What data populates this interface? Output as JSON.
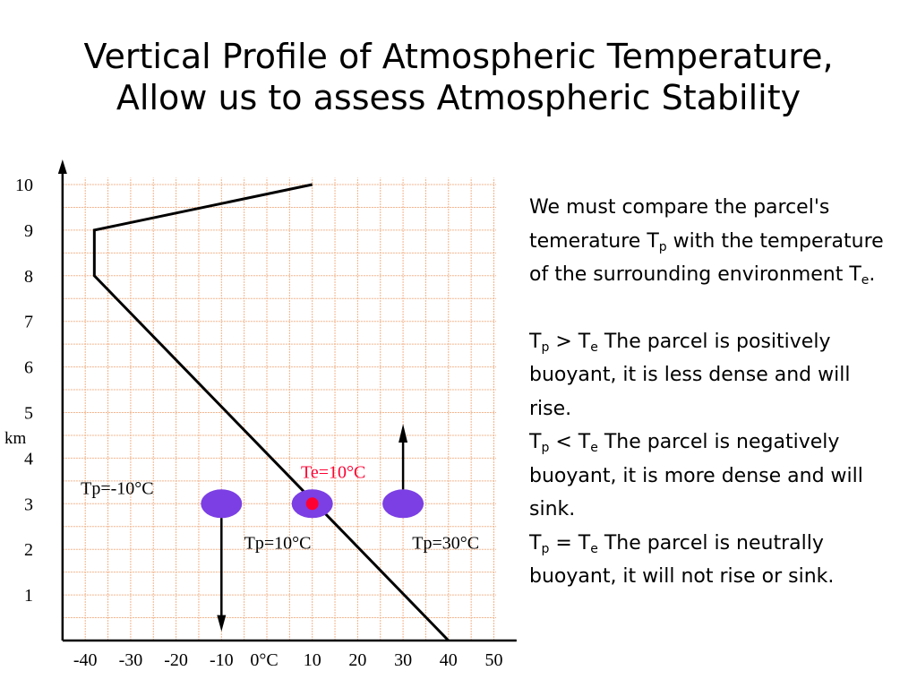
{
  "title": {
    "line1": "Vertical Profile of Atmospheric Temperature,",
    "line2": "Allow us to assess Atmospheric Stability"
  },
  "chart_data": {
    "type": "line",
    "xlabel": "",
    "ylabel": "km",
    "x_ticks": [
      "-40",
      "-30",
      "-20",
      "-10",
      "0°C",
      "10",
      "20",
      "30",
      "40",
      "50"
    ],
    "y_ticks": [
      "1",
      "2",
      "3",
      "4",
      "5",
      "6",
      "7",
      "8",
      "9",
      "10"
    ],
    "xlim": [
      -45,
      55
    ],
    "ylim": [
      0,
      10.5
    ],
    "grid": true,
    "series": [
      {
        "points": [
          [
            40,
            0
          ],
          [
            -38,
            8
          ],
          [
            -38,
            9
          ],
          [
            10,
            10
          ]
        ]
      }
    ],
    "parcels": [
      {
        "x": -10,
        "y": 3,
        "label": "Tp=-10°C",
        "arrow": "down",
        "color": "#7b3fe4"
      },
      {
        "x": 10,
        "y": 3,
        "label": "Tp=10°C",
        "arrow": "none",
        "color": "#7b3fe4"
      },
      {
        "x": 30,
        "y": 3,
        "label": "Tp=30°C",
        "arrow": "up",
        "color": "#7b3fe4"
      }
    ],
    "environment_point": {
      "x": 10,
      "y": 3,
      "label": "Te=10°C",
      "color": "#ff0033"
    },
    "colors": {
      "grid": "#f2b48c",
      "axis": "#000000",
      "profile": "#000000"
    }
  },
  "explanation": {
    "intro": {
      "a": "We must compare the parcel's temerature T",
      "a_sub": "p",
      "b": " with the temperature of the surrounding environment T",
      "b_sub": "e",
      "c": "."
    },
    "rules": [
      {
        "left": "T",
        "left_sub": "p",
        "op": " > T",
        "right_sub": "e",
        "text": " The parcel is positively buoyant, it is less dense and will rise."
      },
      {
        "left": "T",
        "left_sub": "p",
        "op": " < T",
        "right_sub": "e",
        "text": " The parcel is negatively buoyant, it is more dense and will sink."
      },
      {
        "left": "T",
        "left_sub": "p",
        "op": " = T",
        "right_sub": "e",
        "text": " The parcel is neutrally buoyant, it will not rise or sink."
      }
    ]
  }
}
